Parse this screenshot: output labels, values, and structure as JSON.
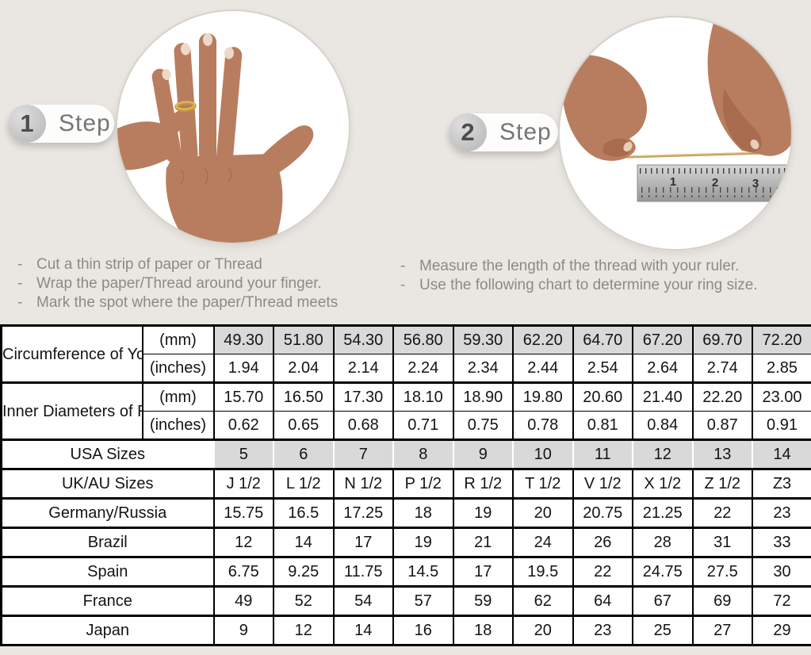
{
  "page": {
    "background": "#eae7e2",
    "title_hint": "ring size measuring guide"
  },
  "colors": {
    "shaded_cell": "#d9d9d9",
    "table_border": "#000000",
    "gold_ring": "#c79a3b",
    "skin": "#b87d5f",
    "ruler_metal": "#b5b5b5"
  },
  "steps": [
    {
      "number": "1",
      "label": "Step",
      "image": "hand-with-gold-ring-photo",
      "instructions": [
        "Cut a thin strip of paper or Thread",
        "Wrap the paper/Thread around your finger.",
        "Mark the spot where the paper/Thread meets"
      ]
    },
    {
      "number": "2",
      "label": "Step",
      "image": "hands-measuring-thread-on-ruler-photo",
      "ruler_numbers": [
        "1",
        "2",
        "3"
      ],
      "instructions": [
        "Measure the length of the thread with your ruler.",
        "Use the following chart to determine your ring size."
      ]
    }
  ],
  "table": {
    "header_groups": [
      {
        "label": "Circumference of Your Finger",
        "rows": [
          {
            "unit": "(mm)",
            "shaded": true,
            "values": [
              "49.30",
              "51.80",
              "54.30",
              "56.80",
              "59.30",
              "62.20",
              "64.70",
              "67.20",
              "69.70",
              "72.20"
            ]
          },
          {
            "unit": "(inches)",
            "shaded": false,
            "values": [
              "1.94",
              "2.04",
              "2.14",
              "2.24",
              "2.34",
              "2.44",
              "2.54",
              "2.64",
              "2.74",
              "2.85"
            ]
          }
        ]
      },
      {
        "label": "Inner Diameters of Rings",
        "rows": [
          {
            "unit": "(mm)",
            "shaded": false,
            "values": [
              "15.70",
              "16.50",
              "17.30",
              "18.10",
              "18.90",
              "19.80",
              "20.60",
              "21.40",
              "22.20",
              "23.00"
            ]
          },
          {
            "unit": "(inches)",
            "shaded": false,
            "values": [
              "0.62",
              "0.65",
              "0.68",
              "0.71",
              "0.75",
              "0.78",
              "0.81",
              "0.84",
              "0.87",
              "0.91"
            ]
          }
        ]
      }
    ],
    "size_rows": [
      {
        "label": "USA Sizes",
        "shaded": true,
        "gap_borders": true,
        "values": [
          "5",
          "6",
          "7",
          "8",
          "9",
          "10",
          "11",
          "12",
          "13",
          "14"
        ]
      },
      {
        "label": "UK/AU Sizes",
        "shaded": false,
        "values": [
          "J 1/2",
          "L 1/2",
          "N 1/2",
          "P 1/2",
          "R 1/2",
          "T 1/2",
          "V 1/2",
          "X 1/2",
          "Z 1/2",
          "Z3"
        ]
      },
      {
        "label": "Germany/Russia",
        "shaded": false,
        "values": [
          "15.75",
          "16.5",
          "17.25",
          "18",
          "19",
          "20",
          "20.75",
          "21.25",
          "22",
          "23"
        ]
      },
      {
        "label": "Brazil",
        "shaded": false,
        "values": [
          "12",
          "14",
          "17",
          "19",
          "21",
          "24",
          "26",
          "28",
          "31",
          "33"
        ]
      },
      {
        "label": "Spain",
        "shaded": false,
        "values": [
          "6.75",
          "9.25",
          "11.75",
          "14.5",
          "17",
          "19.5",
          "22",
          "24.75",
          "27.5",
          "30"
        ]
      },
      {
        "label": "France",
        "shaded": false,
        "values": [
          "49",
          "52",
          "54",
          "57",
          "59",
          "62",
          "64",
          "67",
          "69",
          "72"
        ]
      },
      {
        "label": "Japan",
        "shaded": false,
        "values": [
          "9",
          "12",
          "14",
          "16",
          "18",
          "20",
          "23",
          "25",
          "27",
          "29"
        ]
      }
    ]
  }
}
